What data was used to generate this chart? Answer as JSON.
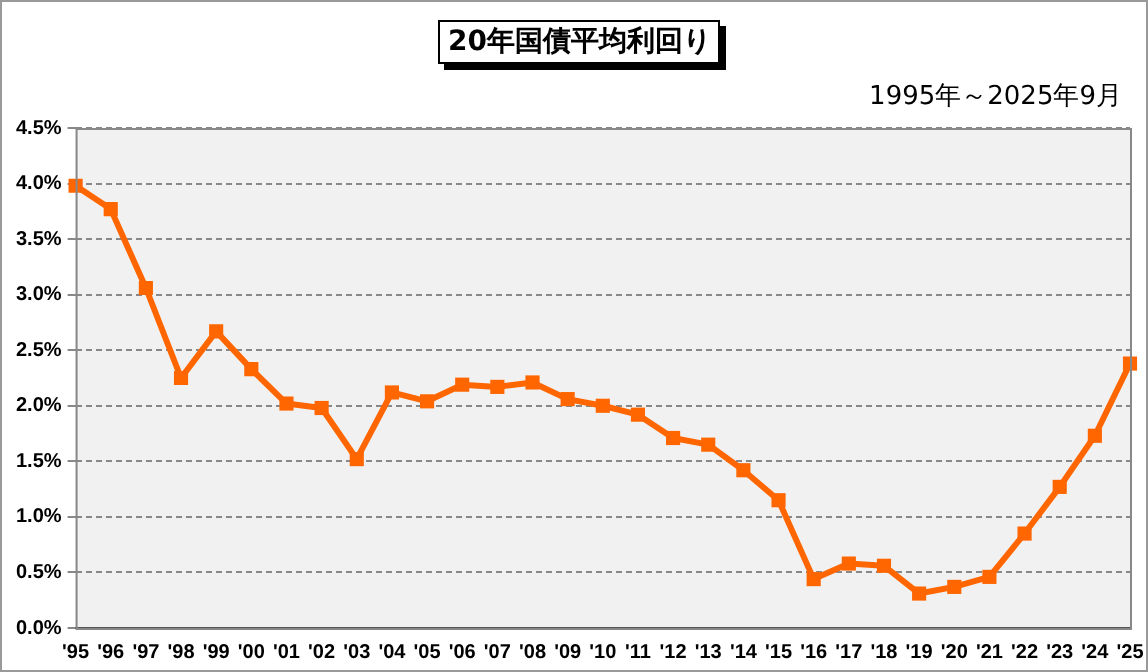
{
  "chart_data": {
    "type": "line",
    "title": "20年国債平均利回り",
    "subtitle": "1995年～2025年9月",
    "categories": [
      "'95",
      "'96",
      "'97",
      "'98",
      "'99",
      "'00",
      "'01",
      "'02",
      "'03",
      "'04",
      "'05",
      "'06",
      "'07",
      "'08",
      "'09",
      "'10",
      "'11",
      "'12",
      "'13",
      "'14",
      "'15",
      "'16",
      "'17",
      "'18",
      "'19",
      "'20",
      "'21",
      "'22",
      "'23",
      "'24",
      "'25"
    ],
    "series": [
      {
        "color": "#ff6600",
        "values": [
          3.98,
          3.77,
          3.06,
          2.25,
          2.67,
          2.33,
          2.02,
          1.98,
          1.52,
          2.12,
          2.04,
          2.19,
          2.17,
          2.21,
          2.06,
          2.0,
          1.92,
          1.71,
          1.65,
          1.42,
          1.15,
          0.44,
          0.58,
          0.56,
          0.31,
          0.37,
          0.46,
          0.85,
          1.27,
          1.73,
          2.38
        ]
      }
    ],
    "ylim": [
      0,
      4.5
    ],
    "yticks": [
      {
        "value": 0,
        "label": "0.0%"
      },
      {
        "value": 0.5,
        "label": "0.5%"
      },
      {
        "value": 1,
        "label": "1.0%"
      },
      {
        "value": 1.5,
        "label": "1.5%"
      },
      {
        "value": 2,
        "label": "2.0%"
      },
      {
        "value": 2.5,
        "label": "2.5%"
      },
      {
        "value": 3,
        "label": "3.0%"
      },
      {
        "value": 3.5,
        "label": "3.5%"
      },
      {
        "value": 4,
        "label": "4.0%"
      },
      {
        "value": 4.5,
        "label": "4.5%"
      }
    ],
    "grid": "y",
    "marker": "square",
    "line_style": "solid",
    "legend": false
  }
}
